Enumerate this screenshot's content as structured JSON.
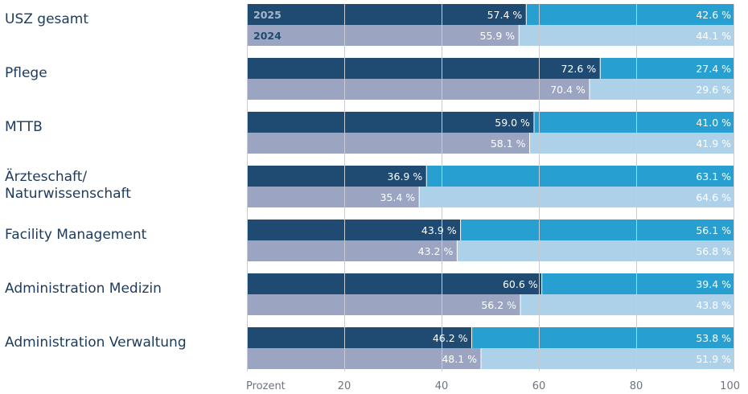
{
  "chart_data": {
    "type": "bar",
    "orientation": "horizontal-stacked",
    "categories": [
      "USZ gesamt",
      "Pflege",
      "MTTB",
      "Ärzteschaft/\nNaturwissenschaft",
      "Facility Management",
      "Administration Medizin",
      "Administration Verwaltung"
    ],
    "years": [
      "2025",
      "2024"
    ],
    "series": [
      {
        "year": "2025",
        "first": [
          57.4,
          72.6,
          59.0,
          36.9,
          43.9,
          60.6,
          46.2
        ],
        "second": [
          42.6,
          27.4,
          41.0,
          63.1,
          56.1,
          39.4,
          53.8
        ]
      },
      {
        "year": "2024",
        "first": [
          55.9,
          70.4,
          58.1,
          35.4,
          43.2,
          56.2,
          48.1
        ],
        "second": [
          44.1,
          29.6,
          41.9,
          64.6,
          56.8,
          43.8,
          51.9
        ]
      }
    ],
    "value_labels": {
      "2025": {
        "first": [
          "57.4 %",
          "72.6 %",
          "59.0 %",
          "36.9 %",
          "43.9 %",
          "60.6 %",
          "46.2 %"
        ],
        "second": [
          "42.6 %",
          "27.4 %",
          "41.0 %",
          "63.1 %",
          "56.1 %",
          "39.4 %",
          "53.8 %"
        ]
      },
      "2024": {
        "first": [
          "55.9 %",
          "70.4 %",
          "58.1 %",
          "35.4 %",
          "43.2 %",
          "56.2 %",
          "48.1 %"
        ],
        "second": [
          "44.1 %",
          "29.6 %",
          "41.9 %",
          "64.6 %",
          "56.8 %",
          "43.8 %",
          "51.9 %"
        ]
      }
    },
    "xlabel": "Prozent",
    "xlim": [
      0,
      100
    ],
    "x_ticks": [
      20,
      40,
      60,
      80,
      100
    ],
    "grid": true,
    "colors": {
      "first_2025": "#1f4a72",
      "second_2025": "#27a0d1",
      "first_2024": "#9ba5c2",
      "second_2024": "#aed1ea",
      "grid": "#c8ccd2",
      "category_text": "#1d3a5c",
      "tick_text": "#6b7480",
      "year_label_2025": "#a7b7cc",
      "year_label_2024": "#1f4a72"
    }
  }
}
